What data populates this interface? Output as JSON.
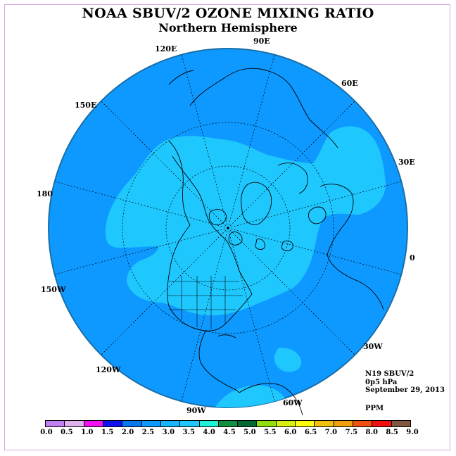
{
  "title": "NOAA SBUV/2 OZONE MIXING RATIO",
  "subtitle": "Northern Hemisphere",
  "info": {
    "satellite": "N19 SBUV/2",
    "level": "0p5 hPa",
    "date": "September 29, 2013",
    "units": "PPM"
  },
  "longitude_labels": [
    "90E",
    "60E",
    "30E",
    "0",
    "30W",
    "60W",
    "90W",
    "120W",
    "150W",
    "180",
    "150E",
    "120E"
  ],
  "colors": {
    "ocean_fill": "#0d99ff",
    "field_3_0_3_5": "#1ec8ff",
    "outline": "#1a6ea8",
    "coast": "#000000"
  },
  "colorbar": {
    "ticks": [
      "0.0",
      "0.5",
      "1.0",
      "1.5",
      "2.0",
      "2.5",
      "3.0",
      "3.5",
      "4.0",
      "4.5",
      "5.0",
      "5.5",
      "6.0",
      "6.5",
      "7.0",
      "7.5",
      "8.0",
      "8.5",
      "9.0"
    ],
    "colors": [
      "#c080f0",
      "#e0b0f0",
      "#f010f0",
      "#1010f0",
      "#0878f0",
      "#0d99ff",
      "#18b4ff",
      "#1ec8ff",
      "#20f0d8",
      "#109040",
      "#006830",
      "#90e010",
      "#d8f010",
      "#ffff10",
      "#f0c010",
      "#f0a010",
      "#f05010",
      "#f01010",
      "#805840"
    ]
  }
}
